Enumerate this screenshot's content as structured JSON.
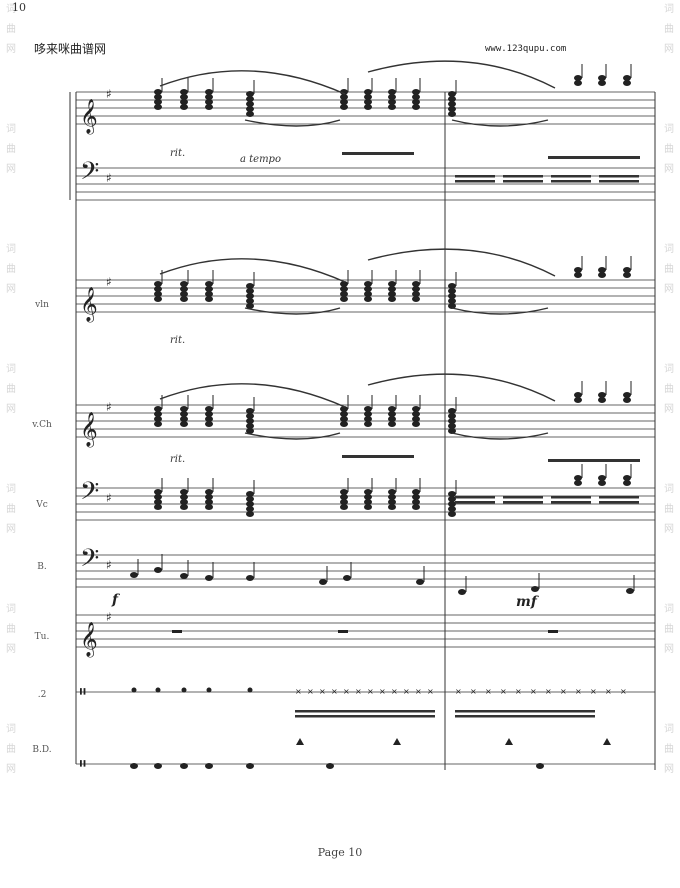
{
  "header": {
    "page_number": "10",
    "site_name": "哆来咪曲谱网",
    "site_url": "www.123qupu.com"
  },
  "watermark": {
    "glyphs": [
      "词",
      "曲",
      "网"
    ],
    "repeat": 7
  },
  "instruments": [
    {
      "id": "p",
      "label": ""
    },
    {
      "id": "s",
      "label": "vln"
    },
    {
      "id": "v",
      "label": "v.Ch"
    },
    {
      "id": "c",
      "label": "Vc"
    },
    {
      "id": "b",
      "label": "B."
    },
    {
      "id": "t",
      "label": "Tu."
    },
    {
      "id": "d2",
      "label": ".2"
    },
    {
      "id": "bd",
      "label": "B.D."
    }
  ],
  "markings": {
    "rit_1": "rit.",
    "a_tempo": "a tempo",
    "rit_2": "rit.",
    "rit_3": "rit."
  },
  "dynamics": {
    "f": "f",
    "mf": "mf"
  },
  "footer": {
    "page_label": "Page 10"
  }
}
